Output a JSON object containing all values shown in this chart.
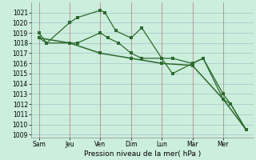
{
  "background_color": "#cceedd",
  "grid_color": "#aacccc",
  "line_color": "#2d6a2d",
  "xlabel": "Pression niveau de la mer( hPa )",
  "ylim_min": 1009,
  "ylim_max": 1022,
  "yticks": [
    1009,
    1010,
    1011,
    1012,
    1013,
    1014,
    1015,
    1016,
    1017,
    1018,
    1019,
    1020,
    1021
  ],
  "x_labels": [
    "Sam",
    "Jeu",
    "Ven",
    "Dim",
    "Lun",
    "Mar",
    "Mer"
  ],
  "x_day_positions": [
    0,
    2,
    4,
    6,
    8,
    10,
    12
  ],
  "xlim_max": 14,
  "series1_x": [
    0,
    0.5,
    2,
    2.5,
    4,
    4.3,
    5.0,
    6,
    6.7,
    8,
    8.7,
    10,
    10.7,
    12,
    12.5,
    13.5
  ],
  "series1_y": [
    1019,
    1018,
    1020,
    1020.5,
    1021.2,
    1021.0,
    1019.2,
    1018.5,
    1019.5,
    1016.5,
    1016.5,
    1016.0,
    1016.5,
    1012.5,
    1012.0,
    1009.5
  ],
  "series2_x": [
    0,
    0.5,
    2,
    2.5,
    4,
    4.5,
    5.2,
    6,
    6.7,
    8,
    8.7,
    10,
    10.7,
    12,
    12.5,
    13.5
  ],
  "series2_y": [
    1018.5,
    1018.0,
    1018.0,
    1018.0,
    1019.0,
    1018.5,
    1018.0,
    1017.0,
    1016.5,
    1016.5,
    1015.0,
    1016.0,
    1016.5,
    1013.0,
    1012.0,
    1009.5
  ],
  "series3_x": [
    0,
    2,
    4,
    6,
    8,
    10,
    12,
    13.5
  ],
  "series3_y": [
    1018.5,
    1018.0,
    1017.0,
    1016.5,
    1016.0,
    1015.8,
    1012.5,
    1009.5
  ],
  "vline_color": "#bb9999",
  "axis_label_fontsize": 6.5,
  "tick_fontsize": 5.5,
  "marker_size": 2.5,
  "line_width": 0.9
}
